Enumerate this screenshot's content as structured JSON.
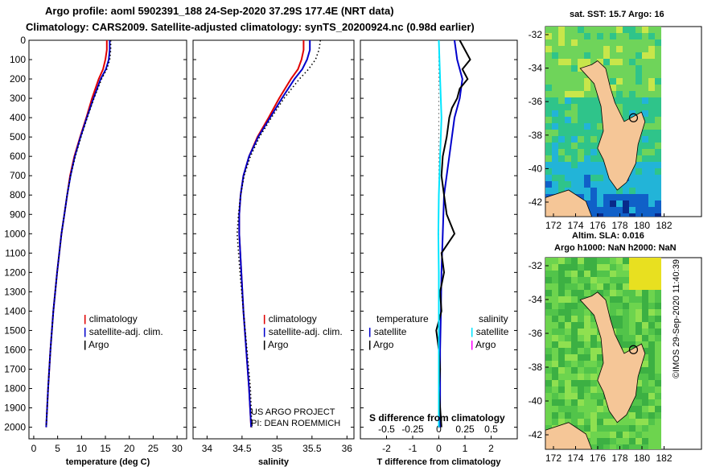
{
  "header": {
    "line1": "Argo profile: aoml 5902391_188 24-Sep-2020 37.29S 177.4E (NRT data)",
    "line2": "Climatology: CARS2009. Satellite-adjusted climatology: synTS_20200924.nc (0.98d earlier)"
  },
  "colors": {
    "red": "#e00000",
    "blue": "#0000cc",
    "black": "#000000",
    "cyan": "#00e5ff",
    "magenta": "#ff00ff"
  },
  "chart_data": [
    {
      "type": "line",
      "name": "temperature",
      "xlabel": "temperature (deg C)",
      "xlim": [
        -1,
        32
      ],
      "ylim": [
        0,
        2060
      ],
      "xticks": [
        0,
        5,
        10,
        15,
        20,
        25,
        30
      ],
      "yticks": [
        0,
        100,
        200,
        300,
        400,
        500,
        600,
        700,
        800,
        900,
        1000,
        1100,
        1200,
        1300,
        1400,
        1500,
        1600,
        1700,
        1800,
        1900,
        2000
      ],
      "legend": [
        "climatology",
        "satellite-adj. clim.",
        "Argo"
      ],
      "series": [
        {
          "name": "climatology",
          "color": "red",
          "depth": [
            0,
            50,
            100,
            150,
            200,
            300,
            400,
            500,
            600,
            700,
            800,
            900,
            1000,
            1200,
            1400,
            1600,
            1800,
            2000
          ],
          "values": [
            15.3,
            15.3,
            15.0,
            14.5,
            13.6,
            12.2,
            11.0,
            9.7,
            8.5,
            7.6,
            7.0,
            6.4,
            5.8,
            4.9,
            4.1,
            3.5,
            3.0,
            2.6
          ]
        },
        {
          "name": "satellite-adj. clim.",
          "color": "blue",
          "depth": [
            0,
            50,
            100,
            150,
            200,
            300,
            400,
            500,
            600,
            700,
            800,
            900,
            1000,
            1200,
            1400,
            1600,
            1800,
            2000
          ],
          "values": [
            15.9,
            15.9,
            15.7,
            15.1,
            14.0,
            12.5,
            11.1,
            9.8,
            8.6,
            7.7,
            7.0,
            6.4,
            5.8,
            4.9,
            4.1,
            3.5,
            3.0,
            2.6
          ]
        },
        {
          "name": "Argo",
          "color": "black",
          "depth": [
            0,
            50,
            100,
            150,
            200,
            300,
            400,
            500,
            600,
            700,
            800,
            900,
            1000,
            1200,
            1400,
            1600,
            1800,
            2000
          ],
          "values": [
            16.1,
            16.1,
            15.9,
            15.3,
            14.2,
            12.6,
            11.2,
            9.9,
            8.7,
            7.7,
            7.0,
            6.4,
            5.8,
            4.9,
            4.1,
            3.5,
            3.0,
            2.6
          ]
        }
      ]
    },
    {
      "type": "line",
      "name": "salinity",
      "xlabel": "salinity",
      "xlim": [
        33.8,
        36.1
      ],
      "ylim": [
        0,
        2060
      ],
      "xticks": [
        34,
        34.5,
        35,
        35.5,
        36
      ],
      "legend": [
        "climatology",
        "satellite-adj. clim.",
        "Argo"
      ],
      "series": [
        {
          "name": "climatology",
          "color": "red",
          "depth": [
            0,
            50,
            100,
            150,
            200,
            300,
            400,
            500,
            600,
            700,
            800,
            900,
            1000,
            1200,
            1400,
            1600,
            1800,
            2000
          ],
          "values": [
            35.38,
            35.38,
            35.35,
            35.3,
            35.2,
            35.03,
            34.88,
            34.72,
            34.6,
            34.52,
            34.48,
            34.46,
            34.46,
            34.49,
            34.52,
            34.56,
            34.6,
            34.63
          ]
        },
        {
          "name": "satellite-adj. clim.",
          "color": "blue",
          "depth": [
            0,
            50,
            100,
            150,
            200,
            300,
            400,
            500,
            600,
            700,
            800,
            900,
            1000,
            1200,
            1400,
            1600,
            1800,
            2000
          ],
          "values": [
            35.47,
            35.47,
            35.43,
            35.36,
            35.25,
            35.07,
            34.9,
            34.73,
            34.6,
            34.52,
            34.48,
            34.46,
            34.46,
            34.49,
            34.52,
            34.56,
            34.6,
            34.63
          ]
        },
        {
          "name": "Argo",
          "color": "black",
          "depth": [
            0,
            50,
            100,
            150,
            200,
            300,
            400,
            500,
            600,
            700,
            800,
            900,
            1000,
            1200,
            1400,
            1600,
            1800,
            2000
          ],
          "values": [
            35.62,
            35.6,
            35.55,
            35.45,
            35.32,
            35.1,
            34.92,
            34.75,
            34.62,
            34.53,
            34.48,
            34.45,
            34.43,
            34.47,
            34.52,
            34.57,
            34.62,
            34.64
          ]
        }
      ],
      "annotation": [
        "US ARGO PROJECT",
        "PI: DEAN ROEMMICH"
      ]
    },
    {
      "type": "line",
      "name": "difference",
      "xlabel": "T difference from climatology",
      "top_label": "S difference from climatology",
      "xlim": [
        -3,
        3
      ],
      "ylim": [
        0,
        2060
      ],
      "xticks": [
        -2,
        -1,
        0,
        1,
        2
      ],
      "sticks": [
        "-0.5",
        "-0.25",
        "0",
        "0.25",
        "0.5"
      ],
      "legend_headers": [
        "temperature",
        "salinity"
      ],
      "legend_left": [
        "satellite",
        "Argo"
      ],
      "legend_right": [
        "satellite",
        "Argo"
      ],
      "series": [
        {
          "name": "T satellite",
          "color": "blue",
          "depth": [
            0,
            100,
            200,
            300,
            400,
            600,
            800,
            1000,
            1200,
            1400,
            1600,
            1800,
            2000
          ],
          "values": [
            0.6,
            0.7,
            0.9,
            0.8,
            0.6,
            0.4,
            0.2,
            0.15,
            0.1,
            0.08,
            0.05,
            0.05,
            0.05
          ]
        },
        {
          "name": "T Argo",
          "color": "black",
          "depth": [
            0,
            50,
            100,
            150,
            200,
            250,
            300,
            350,
            400,
            500,
            600,
            700,
            800,
            900,
            1000,
            1100,
            1200,
            1300,
            1400,
            1500,
            1600,
            1700,
            1800,
            1900,
            2000
          ],
          "values": [
            0.8,
            1.0,
            1.2,
            0.9,
            1.1,
            0.8,
            0.7,
            0.5,
            0.4,
            0.3,
            0.15,
            0.1,
            0.2,
            0.3,
            0.6,
            0.1,
            0.2,
            0.05,
            0.1,
            -0.1,
            0.0,
            0.05,
            0.0,
            0.05,
            0.1
          ]
        },
        {
          "name": "S satellite",
          "color": "cyan",
          "depth": [
            0,
            200,
            400,
            600,
            800,
            1000,
            1200,
            1400,
            1600,
            1800,
            2000
          ],
          "values": [
            0.0,
            0.05,
            0.1,
            0.05,
            0.0,
            -0.02,
            0.0,
            0.0,
            0.0,
            0.0,
            0.0
          ]
        }
      ]
    }
  ],
  "maps": {
    "top": {
      "title": "sat. SST: 15.7 Argo: 16",
      "subtitle": "Altim. SLA: 0.016",
      "yticks": [
        "-32",
        "-34",
        "-36",
        "-38",
        "-40",
        "-42"
      ],
      "xticks": [
        "172",
        "174",
        "176",
        "178",
        "180",
        "182"
      ]
    },
    "bottom": {
      "title": "Argo h1000: NaN h2000: NaN",
      "yticks": [
        "-32",
        "-34",
        "-36",
        "-38",
        "-40",
        "-42"
      ],
      "xticks": [
        "172",
        "174",
        "176",
        "178",
        "180",
        "182"
      ]
    }
  },
  "watermark": "©IMOS 29-Sep-2020 11:40:39"
}
